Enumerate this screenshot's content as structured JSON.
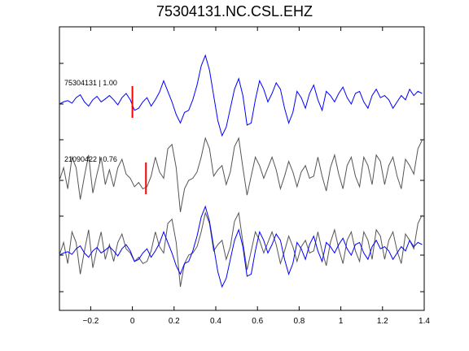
{
  "chart_data": {
    "type": "line",
    "title": "75304131.NC.CSL.EHZ",
    "xlabel": "",
    "ylabel": "",
    "xlim": [
      -0.35,
      1.4
    ],
    "xticks": [
      -0.2,
      0,
      0.2,
      0.4,
      0.6,
      0.8,
      1,
      1.2,
      1.4
    ],
    "xtick_labels": [
      "−0.2",
      "0",
      "0.2",
      "0.4",
      "0.6",
      "0.8",
      "1",
      "1.2",
      "1.4"
    ],
    "grid": false,
    "colors": {
      "reference": "#0000ff",
      "match": "#555555",
      "pick": "#ff0000"
    },
    "traces": [
      {
        "label": "75304131 | 1.00",
        "color": "#0000ff",
        "pick_time": 0.0,
        "x": [
          -0.35,
          -0.33,
          -0.31,
          -0.29,
          -0.27,
          -0.25,
          -0.23,
          -0.21,
          -0.19,
          -0.17,
          -0.15,
          -0.13,
          -0.11,
          -0.09,
          -0.07,
          -0.05,
          -0.03,
          -0.01,
          0.01,
          0.03,
          0.05,
          0.07,
          0.09,
          0.11,
          0.13,
          0.15,
          0.17,
          0.19,
          0.21,
          0.23,
          0.25,
          0.27,
          0.29,
          0.31,
          0.33,
          0.35,
          0.37,
          0.39,
          0.41,
          0.43,
          0.45,
          0.47,
          0.49,
          0.51,
          0.53,
          0.55,
          0.57,
          0.59,
          0.61,
          0.63,
          0.65,
          0.67,
          0.69,
          0.71,
          0.73,
          0.75,
          0.77,
          0.79,
          0.81,
          0.83,
          0.85,
          0.87,
          0.89,
          0.91,
          0.93,
          0.95,
          0.97,
          0.99,
          1.01,
          1.03,
          1.05,
          1.07,
          1.09,
          1.11,
          1.13,
          1.15,
          1.17,
          1.19,
          1.21,
          1.23,
          1.25,
          1.27,
          1.29,
          1.31,
          1.33,
          1.35,
          1.37,
          1.39
        ],
        "y": [
          0.0,
          0.05,
          0.08,
          0.02,
          0.15,
          0.22,
          0.05,
          -0.05,
          0.1,
          0.18,
          0.05,
          0.12,
          0.2,
          0.1,
          -0.02,
          0.15,
          0.25,
          0.1,
          -0.15,
          -0.1,
          0.05,
          0.15,
          -0.05,
          0.1,
          0.28,
          0.55,
          0.3,
          0.05,
          -0.25,
          -0.45,
          -0.2,
          -0.15,
          0.1,
          0.45,
          0.9,
          1.15,
          0.8,
          0.2,
          -0.4,
          -0.75,
          -0.55,
          -0.1,
          0.35,
          0.6,
          0.2,
          -0.5,
          -0.45,
          0.1,
          0.55,
          0.35,
          0.05,
          0.25,
          0.5,
          0.35,
          -0.1,
          -0.45,
          -0.2,
          0.3,
          0.15,
          -0.1,
          0.25,
          0.45,
          0.1,
          -0.15,
          0.3,
          0.2,
          0.05,
          0.25,
          0.4,
          0.15,
          0.0,
          0.25,
          0.3,
          0.05,
          -0.1,
          0.2,
          0.35,
          0.15,
          0.2,
          0.1,
          -0.1,
          0.05,
          0.2,
          0.1,
          0.35,
          0.2,
          0.3,
          0.25
        ]
      },
      {
        "label": "21090422 | 0.76",
        "color": "#555555",
        "pick_time": 0.065,
        "x": [
          -0.35,
          -0.33,
          -0.31,
          -0.29,
          -0.27,
          -0.25,
          -0.23,
          -0.21,
          -0.19,
          -0.17,
          -0.15,
          -0.13,
          -0.11,
          -0.09,
          -0.07,
          -0.05,
          -0.03,
          -0.01,
          0.01,
          0.03,
          0.05,
          0.07,
          0.09,
          0.11,
          0.13,
          0.15,
          0.17,
          0.19,
          0.21,
          0.23,
          0.25,
          0.27,
          0.29,
          0.31,
          0.33,
          0.35,
          0.37,
          0.39,
          0.41,
          0.43,
          0.45,
          0.47,
          0.49,
          0.51,
          0.53,
          0.55,
          0.57,
          0.59,
          0.61,
          0.63,
          0.65,
          0.67,
          0.69,
          0.71,
          0.73,
          0.75,
          0.77,
          0.79,
          0.81,
          0.83,
          0.85,
          0.87,
          0.89,
          0.91,
          0.93,
          0.95,
          0.97,
          0.99,
          1.01,
          1.03,
          1.05,
          1.07,
          1.09,
          1.11,
          1.13,
          1.15,
          1.17,
          1.19,
          1.21,
          1.23,
          1.25,
          1.27,
          1.29,
          1.31,
          1.33,
          1.35,
          1.37,
          1.39
        ],
        "y": [
          0.0,
          0.3,
          -0.2,
          0.55,
          0.3,
          -0.45,
          0.1,
          0.6,
          -0.3,
          0.15,
          0.55,
          -0.1,
          0.25,
          -0.15,
          0.3,
          0.5,
          0.15,
          0.05,
          -0.15,
          -0.05,
          -0.2,
          -0.15,
          0.1,
          0.55,
          0.2,
          0.05,
          0.75,
          0.85,
          0.3,
          -0.75,
          -0.2,
          0.0,
          0.05,
          0.2,
          0.55,
          1.0,
          0.75,
          0.1,
          0.25,
          0.35,
          -0.1,
          0.2,
          0.8,
          1.0,
          0.3,
          -0.35,
          0.1,
          0.55,
          0.35,
          0.05,
          0.3,
          0.55,
          0.25,
          -0.2,
          0.1,
          0.45,
          0.2,
          -0.15,
          0.2,
          0.35,
          0.05,
          0.1,
          0.55,
          0.1,
          -0.25,
          0.3,
          0.6,
          0.15,
          -0.2,
          0.35,
          0.55,
          0.1,
          -0.15,
          0.55,
          0.35,
          -0.1,
          0.6,
          0.45,
          -0.1,
          0.35,
          0.55,
          0.1,
          -0.2,
          0.5,
          0.35,
          0.15,
          0.75,
          0.95
        ]
      }
    ]
  }
}
